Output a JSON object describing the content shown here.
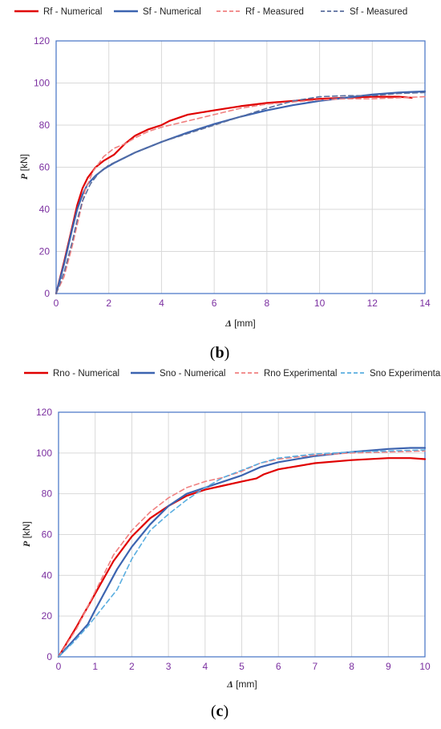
{
  "chart_data": [
    {
      "type": "line",
      "panel_label_open": "(",
      "panel_label_letter": "b",
      "panel_label_close": ")",
      "xlabel_sym": "Δ",
      "xlabel_unit": " [mm]",
      "ylabel_sym": "P",
      "ylabel_unit": " [kN]",
      "xlim": [
        0,
        14
      ],
      "ylim": [
        0,
        120
      ],
      "xticks": [
        0,
        2,
        4,
        6,
        8,
        10,
        12,
        14
      ],
      "yticks": [
        0,
        20,
        40,
        60,
        80,
        100,
        120
      ],
      "grid": true,
      "legend_position": "top",
      "series": [
        {
          "name": "Rf - Numerical",
          "color": "#e00000",
          "dash": "solid",
          "x": [
            0,
            0.3,
            0.6,
            0.8,
            1.0,
            1.2,
            1.5,
            1.8,
            2.2,
            2.6,
            3.0,
            3.5,
            4.0,
            4.3,
            5.0,
            6.0,
            7.0,
            8.0,
            9.0,
            10.0,
            11.0,
            12.0,
            13.0,
            13.5
          ],
          "y": [
            0,
            15,
            31,
            42,
            50,
            55,
            60,
            63,
            66,
            71,
            75,
            78,
            80,
            82,
            85,
            87,
            89,
            90.5,
            91.5,
            92.5,
            93,
            93.5,
            93.5,
            93
          ]
        },
        {
          "name": "Sf - Numerical",
          "color": "#3c64b0",
          "dash": "solid",
          "x": [
            0,
            0.3,
            0.6,
            0.8,
            1.0,
            1.2,
            1.5,
            1.8,
            2.2,
            3.0,
            4.0,
            5.0,
            6.0,
            7.0,
            8.0,
            9.0,
            10.0,
            11.0,
            12.0,
            13.0,
            14.0
          ],
          "y": [
            0,
            14,
            30,
            40,
            47,
            52,
            56,
            59,
            62,
            67,
            72,
            76.5,
            80.5,
            84,
            87,
            89.5,
            91.5,
            93,
            94.5,
            95.5,
            96
          ]
        },
        {
          "name": "Rf - Measured",
          "color": "#f08080",
          "dash": "dashed",
          "x": [
            0,
            0.3,
            0.6,
            0.9,
            1.1,
            1.4,
            1.8,
            2.2,
            2.6,
            3.0,
            3.5,
            4.0,
            5.0,
            6.0,
            7.0,
            8.0,
            9.0,
            10.0,
            11.0,
            12.0,
            13.0,
            14.0
          ],
          "y": [
            0,
            8,
            22,
            38,
            49,
            58,
            65,
            69,
            71,
            74,
            77,
            79,
            82,
            85,
            88,
            90,
            91,
            92,
            92.5,
            92.5,
            93,
            93.5
          ]
        },
        {
          "name": "Sf - Measured",
          "color": "#5a6e9e",
          "dash": "dashed",
          "x": [
            0,
            0.3,
            0.6,
            0.8,
            1.0,
            1.3,
            1.6,
            2.0,
            2.5,
            3.0,
            4.0,
            5.0,
            6.0,
            7.0,
            8.0,
            9.0,
            10.0,
            11.0,
            12.0,
            13.0,
            14.0
          ],
          "y": [
            0,
            10,
            24,
            35,
            44,
            52,
            57,
            61,
            64,
            67,
            72,
            76,
            80,
            84,
            88,
            91.5,
            93.5,
            94,
            94,
            95,
            95.5
          ]
        }
      ]
    },
    {
      "type": "line",
      "panel_label_open": "(",
      "panel_label_letter": "c",
      "panel_label_close": ")",
      "xlabel_sym": "Δ",
      "xlabel_unit": " [mm]",
      "ylabel_sym": "P",
      "ylabel_unit": " [kN]",
      "xlim": [
        0,
        10
      ],
      "ylim": [
        0,
        120
      ],
      "xticks": [
        0,
        1,
        2,
        3,
        4,
        5,
        6,
        7,
        8,
        9,
        10
      ],
      "yticks": [
        0,
        20,
        40,
        60,
        80,
        100,
        120
      ],
      "grid": true,
      "legend_position": "top",
      "series": [
        {
          "name": "Rno - Numerical",
          "color": "#e00000",
          "dash": "solid",
          "x": [
            0,
            0.5,
            1.0,
            1.5,
            2.0,
            2.5,
            3.0,
            3.5,
            4.0,
            4.5,
            5.0,
            5.4,
            5.6,
            6.0,
            7.0,
            8.0,
            9.0,
            9.6,
            10.0
          ],
          "y": [
            0,
            15,
            31,
            47,
            59,
            68,
            74,
            79,
            82,
            84,
            86,
            87.5,
            89.5,
            92,
            95,
            96.5,
            97.5,
            97.5,
            97
          ]
        },
        {
          "name": "Sno - Numerical",
          "color": "#3c64b0",
          "dash": "solid",
          "x": [
            0,
            0.4,
            0.8,
            1.0,
            1.3,
            1.6,
            2.0,
            2.5,
            3.0,
            3.5,
            4.0,
            4.5,
            5.0,
            5.5,
            6.0,
            7.0,
            8.0,
            9.0,
            9.6,
            10.0
          ],
          "y": [
            0,
            8,
            16,
            23,
            33,
            43,
            54,
            65,
            74,
            80,
            83,
            86,
            89,
            93,
            95.5,
            98.5,
            100.5,
            102,
            102.5,
            102.5
          ]
        },
        {
          "name": "Rno Experimental",
          "color": "#f08080",
          "dash": "dashed",
          "x": [
            0,
            0.5,
            1.0,
            1.5,
            2.0,
            2.5,
            3.0,
            3.5,
            4.0,
            4.5,
            5.0,
            5.5,
            6.0,
            7.0,
            8.0,
            9.0,
            10.0
          ],
          "y": [
            0,
            14,
            32,
            50,
            62,
            71,
            78,
            83,
            86,
            88,
            91,
            95,
            97,
            99,
            100,
            100.5,
            101
          ]
        },
        {
          "name": "Sno Experimental",
          "color": "#5aaee0",
          "dash": "dashed",
          "x": [
            0,
            0.4,
            0.8,
            1.2,
            1.6,
            2.0,
            2.5,
            3.0,
            3.5,
            4.0,
            4.5,
            5.0,
            5.5,
            6.0,
            7.0,
            8.0,
            9.0,
            10.0
          ],
          "y": [
            0,
            7,
            15,
            24,
            33,
            48,
            62,
            70,
            77,
            83,
            88,
            91.5,
            95,
            97.5,
            99.5,
            100.5,
            101,
            101.5
          ]
        }
      ]
    }
  ]
}
